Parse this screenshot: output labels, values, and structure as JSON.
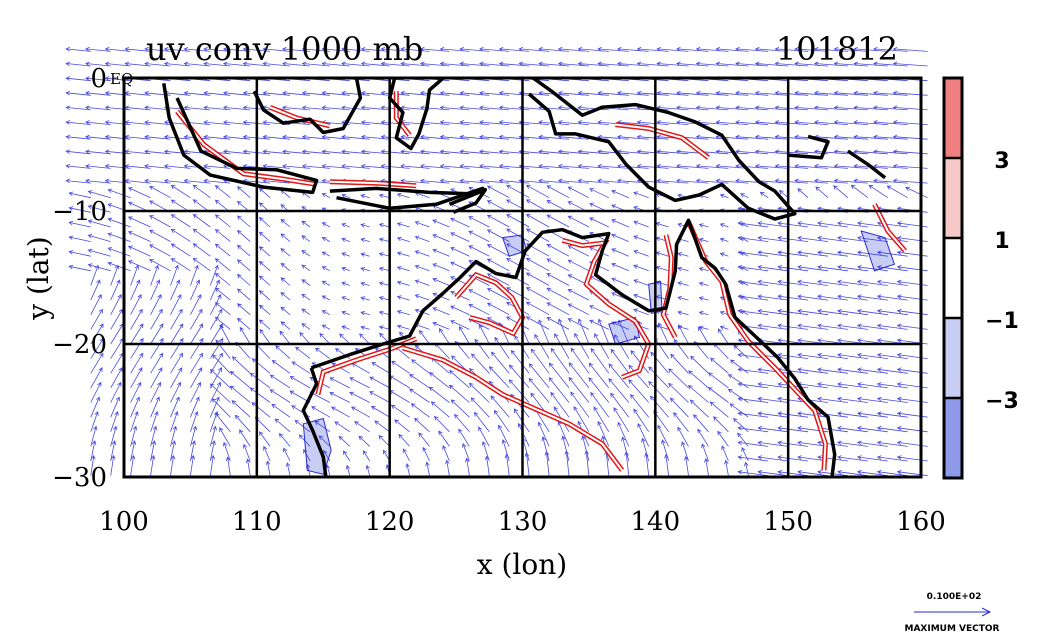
{
  "chart_data": {
    "type": "vector-contour-map",
    "title_left": "uv conv 1000 mb",
    "title_right": "101812",
    "xlabel": "x (lon)",
    "ylabel": "y (lat)",
    "xlim": [
      100,
      160
    ],
    "ylim": [
      -30,
      0
    ],
    "x_ticks": [
      100,
      110,
      120,
      130,
      140,
      150,
      160
    ],
    "y_ticks": [
      {
        "value": 0,
        "label": "0"
      },
      {
        "value": -10,
        "label": "−10"
      },
      {
        "value": -20,
        "label": "−20"
      },
      {
        "value": -30,
        "label": "−30"
      }
    ],
    "corner_tick_label": "EQ",
    "gridlines": true,
    "colorbar": {
      "labels": [
        {
          "value": 3,
          "label": "3"
        },
        {
          "value": 1,
          "label": "1"
        },
        {
          "value": -1,
          "label": "−1"
        },
        {
          "value": -3,
          "label": "−3"
        }
      ],
      "bands": [
        {
          "from": 3,
          "to": 5,
          "color": "#ef7f7f"
        },
        {
          "from": 1,
          "to": 3,
          "color": "#f6c8c8"
        },
        {
          "from": -1,
          "to": 1,
          "color": "#ffffff"
        },
        {
          "from": -3,
          "to": -1,
          "color": "#c8cdf4"
        },
        {
          "from": -5,
          "to": -3,
          "color": "#8f99ea"
        }
      ],
      "range": [
        -5,
        5
      ]
    },
    "vector_key": {
      "value_label": "0.100E+02",
      "caption": "MAXIMUM VECTOR"
    },
    "colors": {
      "vectors": "#2a2ad8",
      "positive_contour": "#e01818",
      "negative_fill": "#c8cdf4",
      "coastline": "#000000"
    },
    "coastlines": [
      [
        [
          104,
          -1.5
        ],
        [
          105.8,
          -5.5
        ],
        [
          108.5,
          -6.8
        ],
        [
          111.5,
          -6.9
        ],
        [
          114.5,
          -7.7
        ],
        [
          114.2,
          -8.6
        ],
        [
          110.5,
          -8.2
        ],
        [
          106.5,
          -7.3
        ],
        [
          104.5,
          -5.8
        ],
        [
          103.4,
          -3
        ],
        [
          103,
          -0.4
        ]
      ],
      [
        [
          115.5,
          -8.5
        ],
        [
          119,
          -8.3
        ],
        [
          123,
          -8.6
        ],
        [
          126,
          -8.7
        ],
        [
          127,
          -8.3
        ],
        [
          123.5,
          -9.5
        ],
        [
          120,
          -9.8
        ],
        [
          116,
          -9
        ]
      ],
      [
        [
          124.5,
          -9.5
        ],
        [
          125.5,
          -9.1
        ],
        [
          127.2,
          -8.4
        ],
        [
          126.5,
          -9.4
        ],
        [
          124.8,
          -10.1
        ]
      ],
      [
        [
          117.5,
          0
        ],
        [
          117.8,
          -1.5
        ],
        [
          116.5,
          -3.8
        ],
        [
          115,
          -4.1
        ],
        [
          114,
          -3.1
        ],
        [
          112,
          -3.4
        ],
        [
          110.5,
          -2.4
        ],
        [
          109.8,
          -1
        ]
      ],
      [
        [
          120.5,
          0.5
        ],
        [
          120,
          -1.5
        ],
        [
          121,
          -2.6
        ],
        [
          120.5,
          -4.5
        ],
        [
          121.6,
          -5.3
        ],
        [
          122.2,
          -4.2
        ],
        [
          122.8,
          -2.3
        ],
        [
          123,
          -0.9
        ],
        [
          124.5,
          0.4
        ]
      ],
      [
        [
          130.8,
          0
        ],
        [
          132.2,
          -1
        ],
        [
          134.5,
          -2.8
        ],
        [
          136,
          -2.2
        ],
        [
          138.5,
          -2
        ],
        [
          141,
          -2.6
        ],
        [
          143,
          -3.3
        ],
        [
          145,
          -4.3
        ],
        [
          146.3,
          -6.2
        ],
        [
          147.8,
          -7.8
        ],
        [
          149,
          -8.5
        ],
        [
          150.5,
          -10.2
        ],
        [
          149,
          -10.6
        ],
        [
          147,
          -9.8
        ],
        [
          145,
          -8
        ],
        [
          143.3,
          -8.8
        ],
        [
          141.5,
          -9.2
        ],
        [
          139.5,
          -8.2
        ],
        [
          137.8,
          -6.5
        ],
        [
          136.5,
          -4.8
        ],
        [
          134,
          -4.2
        ],
        [
          132.5,
          -4.2
        ],
        [
          132,
          -2.5
        ],
        [
          130.5,
          -1.2
        ]
      ],
      [
        [
          151.5,
          -4.4
        ],
        [
          153,
          -4.8
        ],
        [
          152.5,
          -6
        ],
        [
          150,
          -5.8
        ]
      ],
      [
        [
          154.5,
          -5.5
        ],
        [
          156,
          -6.5
        ],
        [
          157.3,
          -7.5
        ]
      ],
      [
        [
          114.1,
          -21.8
        ],
        [
          114.5,
          -23
        ],
        [
          113.5,
          -25
        ],
        [
          114.2,
          -26.5
        ],
        [
          115,
          -28.5
        ],
        [
          115.2,
          -30
        ]
      ],
      [
        [
          114.1,
          -21.8
        ],
        [
          117,
          -20.8
        ],
        [
          119.5,
          -20
        ],
        [
          121.5,
          -19.4
        ],
        [
          122.5,
          -17.5
        ],
        [
          124,
          -16.2
        ],
        [
          125.3,
          -15
        ],
        [
          126.5,
          -13.8
        ],
        [
          128,
          -14.7
        ],
        [
          129.5,
          -15
        ],
        [
          130.2,
          -13
        ],
        [
          131.5,
          -11.6
        ],
        [
          133,
          -11.4
        ],
        [
          134.5,
          -12
        ],
        [
          136.5,
          -11.7
        ],
        [
          136,
          -13
        ],
        [
          135.5,
          -14.8
        ],
        [
          137.5,
          -16.3
        ],
        [
          139.5,
          -17.5
        ],
        [
          140.8,
          -17.3
        ],
        [
          141.5,
          -14.5
        ],
        [
          141.6,
          -12.5
        ],
        [
          142.5,
          -10.7
        ],
        [
          143.5,
          -13.5
        ],
        [
          144.5,
          -14.3
        ],
        [
          145.3,
          -15.5
        ],
        [
          146,
          -18
        ],
        [
          147.5,
          -19.4
        ],
        [
          149.2,
          -21
        ],
        [
          150.5,
          -22.6
        ],
        [
          151.5,
          -24.2
        ],
        [
          153,
          -25.5
        ],
        [
          153.5,
          -28.3
        ],
        [
          153.3,
          -30
        ]
      ]
    ],
    "positive_contours": [
      [
        [
          104,
          -2.5
        ],
        [
          106,
          -5
        ],
        [
          109,
          -7.2
        ],
        [
          112,
          -7.6
        ],
        [
          114.5,
          -8
        ]
      ],
      [
        [
          115.5,
          -7.8
        ],
        [
          119,
          -7.9
        ],
        [
          122,
          -8.1
        ]
      ],
      [
        [
          122,
          -19.6
        ],
        [
          120,
          -20.4
        ],
        [
          117.5,
          -21.2
        ],
        [
          115,
          -22.1
        ],
        [
          114.6,
          -23.8
        ]
      ],
      [
        [
          121,
          -20.3
        ],
        [
          124,
          -21.2
        ],
        [
          126.5,
          -22.5
        ],
        [
          128.5,
          -23.8
        ],
        [
          131,
          -24.9
        ],
        [
          133.5,
          -26
        ],
        [
          136,
          -27.5
        ],
        [
          137.5,
          -29.5
        ]
      ],
      [
        [
          125,
          -16.5
        ],
        [
          126.5,
          -14.8
        ],
        [
          128,
          -15.4
        ],
        [
          129.2,
          -16.5
        ],
        [
          130,
          -18
        ],
        [
          129.3,
          -19.2
        ],
        [
          127.5,
          -18.4
        ],
        [
          126,
          -18
        ]
      ],
      [
        [
          133,
          -12.2
        ],
        [
          134.5,
          -12.6
        ],
        [
          136.2,
          -12.4
        ],
        [
          135.4,
          -13.8
        ],
        [
          134.8,
          -15.5
        ],
        [
          136.5,
          -17
        ],
        [
          138.5,
          -18.3
        ],
        [
          139.5,
          -20
        ],
        [
          138.8,
          -22
        ],
        [
          137.5,
          -22.5
        ]
      ],
      [
        [
          140.8,
          -11.8
        ],
        [
          141.2,
          -13.5
        ],
        [
          141.1,
          -15.8
        ],
        [
          140.6,
          -17.8
        ],
        [
          141.5,
          -19.5
        ]
      ],
      [
        [
          142.5,
          -10.8
        ],
        [
          143.8,
          -13.8
        ],
        [
          145,
          -15.3
        ],
        [
          145.6,
          -17.8
        ],
        [
          147,
          -19.8
        ],
        [
          149,
          -21.8
        ],
        [
          150.4,
          -23.3
        ],
        [
          152,
          -25
        ],
        [
          152.8,
          -27.5
        ],
        [
          152.7,
          -29.5
        ]
      ],
      [
        [
          156.5,
          -9.5
        ],
        [
          157.5,
          -11.5
        ],
        [
          158.8,
          -13
        ]
      ],
      [
        [
          137,
          -3.5
        ],
        [
          139.5,
          -3.8
        ],
        [
          142,
          -4.5
        ],
        [
          144,
          -6
        ]
      ],
      [
        [
          120.5,
          -1
        ],
        [
          120.5,
          -3
        ],
        [
          121.5,
          -4.3
        ]
      ],
      [
        [
          111,
          -2.2
        ],
        [
          113,
          -3
        ],
        [
          115.5,
          -3.6
        ]
      ]
    ],
    "negative_regions": [
      [
        [
          113.5,
          -26
        ],
        [
          115,
          -25.6
        ],
        [
          115.6,
          -28
        ],
        [
          115,
          -29.8
        ],
        [
          113.8,
          -29.5
        ]
      ],
      [
        [
          128.5,
          -12
        ],
        [
          130,
          -11.8
        ],
        [
          130.3,
          -13
        ],
        [
          129,
          -13.4
        ]
      ],
      [
        [
          139.5,
          -15.5
        ],
        [
          140.4,
          -15.3
        ],
        [
          140.5,
          -17.5
        ],
        [
          139.7,
          -17.7
        ]
      ],
      [
        [
          155.5,
          -11.5
        ],
        [
          157.3,
          -12
        ],
        [
          158,
          -14
        ],
        [
          156.5,
          -14.5
        ]
      ],
      [
        [
          136.5,
          -18.5
        ],
        [
          138.5,
          -18
        ],
        [
          138.8,
          -19.5
        ],
        [
          137,
          -20
        ]
      ]
    ]
  }
}
